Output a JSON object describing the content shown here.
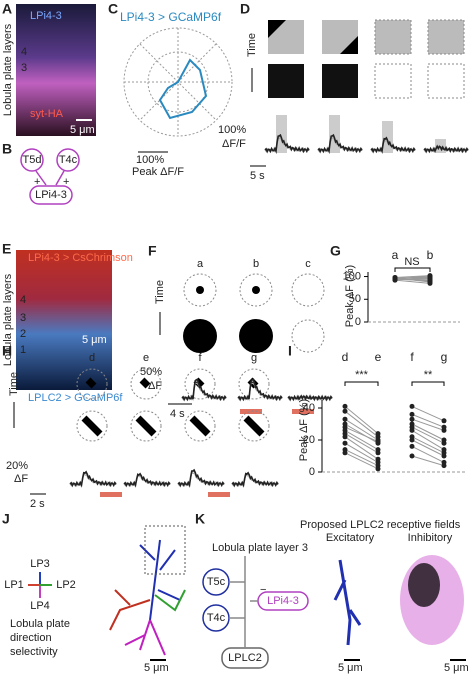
{
  "panels": {
    "A": {
      "label": "A",
      "y_axis_label": "Lobula plate layers",
      "stain_1": "LPi4-3",
      "stain_2": "syt-HA",
      "layers": [
        "4",
        "3"
      ],
      "scale_bar": "5 μm"
    },
    "B": {
      "label": "B",
      "nodes": [
        "T5d",
        "T4c",
        "LPi4-3"
      ],
      "signs": [
        "+",
        "+"
      ]
    },
    "C": {
      "label": "C",
      "title": "LPi4-3 > GCaMP6f",
      "scale_value": "100%",
      "scale_label": "Peak ΔF/F"
    },
    "D": {
      "label": "D",
      "time_label": "Time",
      "y_scale_value": "100%",
      "y_scale_label": "ΔF/F",
      "x_scale": "5 s"
    },
    "E": {
      "label": "E",
      "top_text": "LPi4-3 > CsChrimson",
      "y_axis_label": "Lobula plate layers",
      "layers": [
        "4",
        "3",
        "2",
        "1"
      ],
      "scale_bar": "5 μm",
      "bottom_text": "LPLC2 > GCaMP6f"
    },
    "F": {
      "label": "F",
      "conditions": [
        "a",
        "b",
        "c"
      ],
      "time_label": "Time",
      "y_scale_value": "50%",
      "y_scale_label": "ΔF",
      "x_scale": "4 s"
    },
    "G": {
      "label": "G",
      "categories": [
        "a",
        "b"
      ],
      "significance": "NS",
      "y_label": "Peak ΔF (%)",
      "ylim": [
        0,
        110
      ],
      "yticks": [
        0,
        50,
        100
      ],
      "values": [
        [
          96,
          94,
          95,
          97,
          93,
          95,
          98,
          92,
          96,
          94
        ],
        [
          99,
          93,
          101,
          88,
          96,
          90,
          102,
          85,
          97,
          92
        ]
      ]
    },
    "H": {
      "label": "H",
      "conditions": [
        "d",
        "e",
        "f",
        "g"
      ],
      "time_label": "Time",
      "y_scale_value": "20%",
      "y_scale_label": "ΔF",
      "x_scale": "2 s"
    },
    "I": {
      "label": "I",
      "y_label": "Peak ΔF (%)",
      "ylim": [
        0,
        45
      ],
      "yticks": [
        0,
        20,
        40
      ],
      "groups": [
        {
          "categories": [
            "d",
            "e"
          ],
          "significance": "***",
          "values": [
            [
              41,
              38,
              33,
              30,
              28,
              26,
              24,
              22,
              18,
              14,
              12
            ],
            [
              24,
              22,
              20,
              18,
              19,
              14,
              12,
              8,
              6,
              4,
              2
            ]
          ]
        },
        {
          "categories": [
            "f",
            "g"
          ],
          "significance": "**",
          "values": [
            [
              41,
              36,
              33,
              30,
              28,
              26,
              22,
              20,
              16,
              10
            ],
            [
              32,
              28,
              26,
              20,
              18,
              14,
              12,
              10,
              6,
              4
            ]
          ]
        }
      ]
    },
    "J": {
      "label": "J",
      "directions": [
        "LP3",
        "LP1",
        "LP2",
        "LP4"
      ],
      "caption": [
        "Lobula plate",
        "direction",
        "selectivity"
      ],
      "scale_bar": "5 μm"
    },
    "K": {
      "label": "K",
      "layer_title": "Lobula plate layer 3",
      "nodes": [
        "T5c",
        "T4c",
        "LPi4-3",
        "LPLC2"
      ],
      "sign": "−",
      "rf_title": "Proposed LPLC2 receptive fields",
      "rf_labels": [
        "Excitatory",
        "Inhibitory"
      ],
      "scale_bars": [
        "5 μm",
        "5 μm"
      ]
    }
  }
}
